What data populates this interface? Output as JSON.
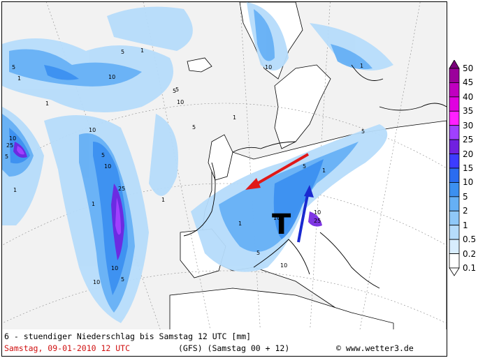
{
  "footer": {
    "title": "6 - stuendiger Niederschlag bis Samstag 12 UTC [mm]",
    "date_time": "Samstag, 09-01-2010  12 UTC",
    "model_run": "(GFS)  (Samstag 00 + 12)",
    "copyright": "© www.wetter3.de"
  },
  "legend": {
    "levels": [
      "50",
      "45",
      "40",
      "35",
      "30",
      "25",
      "20",
      "15",
      "10",
      "5",
      "2",
      "1",
      "0.5",
      "0.2",
      "0.1"
    ],
    "colors": [
      "#7a007a",
      "#9b009b",
      "#c000c0",
      "#e000e0",
      "#ff20ff",
      "#a040ff",
      "#7020e0",
      "#3c3cff",
      "#2a6cf0",
      "#3c90f0",
      "#66b0f5",
      "#8fc8f8",
      "#b6dcfb",
      "#d8edfd",
      "#ffffff"
    ]
  },
  "map": {
    "contour_labels": [
      {
        "text": "5"
      },
      {
        "text": "1"
      },
      {
        "text": "10"
      },
      {
        "text": "5"
      },
      {
        "text": "1"
      },
      {
        "text": "5"
      },
      {
        "text": "10"
      },
      {
        "text": "1"
      },
      {
        "text": "25"
      },
      {
        "text": "10"
      },
      {
        "text": "5"
      },
      {
        "text": "10"
      },
      {
        "text": "1"
      },
      {
        "text": "5"
      },
      {
        "text": "10"
      },
      {
        "text": "25"
      },
      {
        "text": "1"
      },
      {
        "text": "10"
      },
      {
        "text": "5"
      },
      {
        "text": "10"
      },
      {
        "text": "1"
      },
      {
        "text": "5"
      },
      {
        "text": "1"
      },
      {
        "text": "5"
      },
      {
        "text": "10"
      },
      {
        "text": "1"
      },
      {
        "text": "5"
      },
      {
        "text": "1"
      },
      {
        "text": "10"
      },
      {
        "text": "25"
      },
      {
        "text": "10"
      },
      {
        "text": "5"
      },
      {
        "text": "1"
      },
      {
        "text": "10"
      },
      {
        "text": "5"
      }
    ],
    "low_pressure_marker": "T",
    "arrow_colors": {
      "red": "#e01818",
      "blue": "#1a2ad0"
    }
  }
}
